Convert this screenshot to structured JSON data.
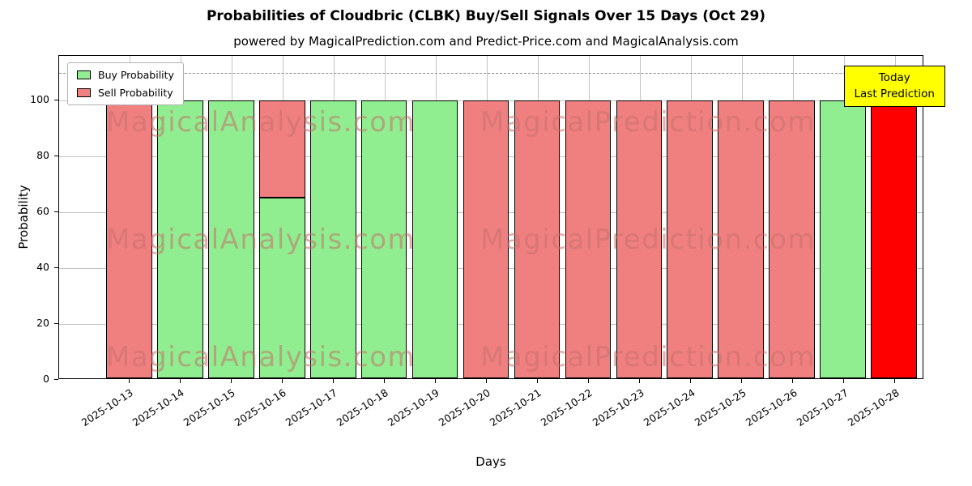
{
  "chart_data": {
    "type": "bar",
    "title": "Probabilities of Cloudbric (CLBK) Buy/Sell Signals Over 15 Days (Oct 29)",
    "subtitle": "powered by MagicalPrediction.com and Predict-Price.com and MagicalAnalysis.com",
    "xlabel": "Days",
    "ylabel": "Probability",
    "ylim": [
      0,
      116
    ],
    "yticks": [
      0,
      20,
      40,
      60,
      80,
      100
    ],
    "grid": true,
    "legend_position": "upper left",
    "dashed_line_y": 110,
    "categories": [
      "2025-10-13",
      "2025-10-14",
      "2025-10-15",
      "2025-10-16",
      "2025-10-17",
      "2025-10-18",
      "2025-10-19",
      "2025-10-20",
      "2025-10-21",
      "2025-10-22",
      "2025-10-23",
      "2025-10-24",
      "2025-10-25",
      "2025-10-26",
      "2025-10-27",
      "2025-10-28"
    ],
    "series": [
      {
        "name": "Buy Probability",
        "color": "#90ee90",
        "values": [
          0,
          100,
          100,
          65,
          100,
          100,
          100,
          0,
          0,
          0,
          0,
          0,
          0,
          0,
          100,
          0
        ]
      },
      {
        "name": "Sell Probability",
        "color": "#f08080",
        "values": [
          100,
          0,
          0,
          35,
          0,
          0,
          0,
          100,
          100,
          100,
          100,
          100,
          100,
          100,
          0,
          0
        ]
      },
      {
        "name": "Today Last Prediction",
        "color": "#ff0000",
        "values": [
          0,
          0,
          0,
          0,
          0,
          0,
          0,
          0,
          0,
          0,
          0,
          0,
          0,
          0,
          0,
          100
        ]
      }
    ],
    "legend": [
      {
        "label": "Buy Probability",
        "color": "#90ee90"
      },
      {
        "label": "Sell Probability",
        "color": "#f08080"
      }
    ],
    "annotation": {
      "lines": [
        "Today",
        "Last Prediction"
      ],
      "bg": "#ffff00"
    },
    "watermarks": [
      "MagicalAnalysis.com",
      "MagicalPrediction.com"
    ],
    "colors": {
      "buy": "#90ee90",
      "sell": "#f08080",
      "today": "#ff0000",
      "grid": "#c3c3c3",
      "dashed": "#8a8a8a"
    }
  }
}
